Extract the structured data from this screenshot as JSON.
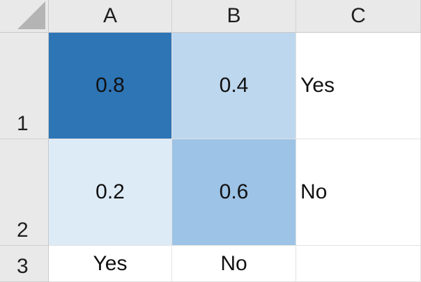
{
  "columns": [
    "A",
    "B",
    "C"
  ],
  "rows": [
    "1",
    "2",
    "3"
  ],
  "grid": {
    "A1": {
      "value": "0.8",
      "fill": "#2e75b6"
    },
    "B1": {
      "value": "0.4",
      "fill": "#bdd7ee"
    },
    "C1": {
      "value": "Yes"
    },
    "A2": {
      "value": "0.2",
      "fill": "#ddebf7"
    },
    "B2": {
      "value": "0.6",
      "fill": "#9dc3e6"
    },
    "C2": {
      "value": "No"
    },
    "A3": {
      "value": "Yes"
    },
    "B3": {
      "value": "No"
    },
    "C3": {
      "value": ""
    }
  }
}
